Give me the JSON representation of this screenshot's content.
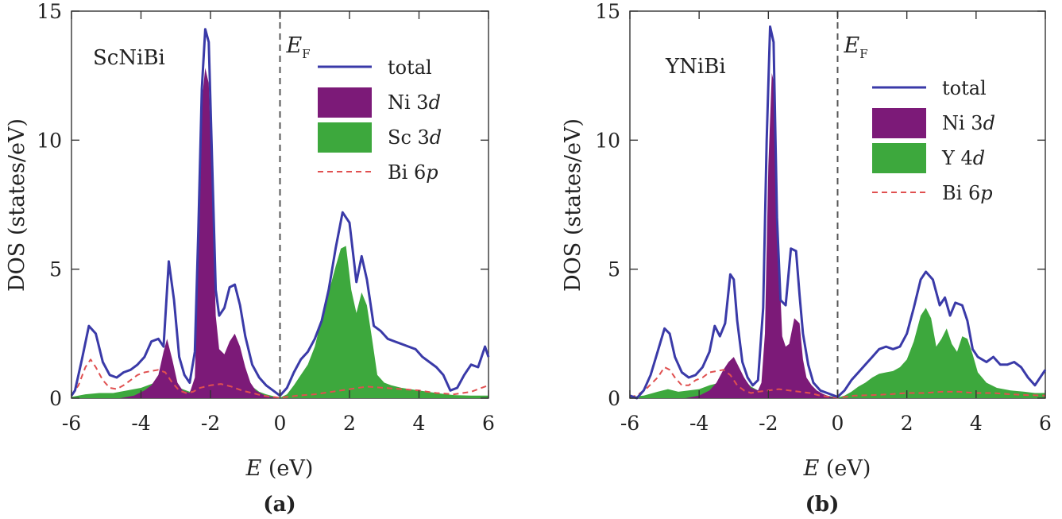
{
  "figure": {
    "colors": {
      "total": "#3a3aa8",
      "ni": "#7c1a78",
      "second": "#3da83d",
      "bi": "#e05050",
      "axis": "#333333",
      "ef_line": "#555555"
    }
  },
  "chart_data": [
    {
      "type": "area",
      "panel_label": "(a)",
      "title": "ScNiBi",
      "xlabel_symbol": "E",
      "xlabel_unit": " (eV)",
      "ylabel": "DOS (states/eV)",
      "fermi_label": "E",
      "fermi_sub": "F",
      "xlim": [
        -6,
        6
      ],
      "ylim": [
        0,
        15
      ],
      "xticks": [
        -6,
        -4,
        -2,
        0,
        2,
        4,
        6
      ],
      "yticks": [
        0,
        5,
        10,
        15
      ],
      "xtick_labels": [
        "-6",
        "-4",
        "-2",
        "0",
        "2",
        "4",
        "6"
      ],
      "ytick_labels": [
        "0",
        "5",
        "10",
        "15"
      ],
      "legend": [
        {
          "key": "total",
          "prefix": "total",
          "italic": ""
        },
        {
          "key": "ni",
          "prefix": "Ni 3",
          "italic": "d"
        },
        {
          "key": "second",
          "prefix": "Sc 3",
          "italic": "d"
        },
        {
          "key": "bi",
          "prefix": "Bi 6",
          "italic": "p"
        }
      ],
      "series": [
        {
          "name": "total",
          "x": [
            -6,
            -5.9,
            -5.7,
            -5.5,
            -5.3,
            -5.1,
            -4.9,
            -4.7,
            -4.5,
            -4.3,
            -4.1,
            -3.9,
            -3.7,
            -3.5,
            -3.35,
            -3.2,
            -3.05,
            -2.9,
            -2.75,
            -2.6,
            -2.45,
            -2.35,
            -2.25,
            -2.15,
            -2.05,
            -1.95,
            -1.85,
            -1.75,
            -1.6,
            -1.45,
            -1.3,
            -1.15,
            -1,
            -0.8,
            -0.6,
            -0.4,
            -0.2,
            0,
            0.2,
            0.4,
            0.6,
            0.8,
            1,
            1.2,
            1.4,
            1.6,
            1.8,
            2,
            2.2,
            2.35,
            2.5,
            2.7,
            2.9,
            3.1,
            3.3,
            3.5,
            3.7,
            3.9,
            4.1,
            4.3,
            4.5,
            4.7,
            4.9,
            5.1,
            5.3,
            5.5,
            5.7,
            5.9,
            6
          ],
          "y": [
            0.1,
            0.3,
            1.5,
            2.8,
            2.5,
            1.4,
            0.9,
            0.8,
            1.0,
            1.1,
            1.3,
            1.6,
            2.2,
            2.3,
            2.0,
            5.3,
            3.8,
            1.6,
            0.9,
            0.6,
            1.8,
            6.5,
            12.0,
            14.3,
            13.8,
            9.0,
            4.2,
            3.2,
            3.5,
            4.3,
            4.4,
            3.6,
            2.4,
            1.3,
            0.8,
            0.5,
            0.3,
            0.1,
            0.4,
            1.0,
            1.5,
            1.8,
            2.3,
            3.0,
            4.2,
            5.8,
            7.2,
            6.8,
            4.5,
            5.5,
            4.6,
            2.8,
            2.6,
            2.3,
            2.2,
            2.1,
            2.0,
            1.9,
            1.6,
            1.4,
            1.2,
            0.9,
            0.3,
            0.4,
            0.9,
            1.3,
            1.2,
            2.0,
            1.6
          ]
        },
        {
          "name": "ni",
          "x": [
            -6,
            -4.6,
            -4.2,
            -3.9,
            -3.7,
            -3.5,
            -3.35,
            -3.25,
            -3.1,
            -2.95,
            -2.8,
            -2.6,
            -2.45,
            -2.35,
            -2.25,
            -2.15,
            -2.05,
            -1.95,
            -1.85,
            -1.75,
            -1.6,
            -1.45,
            -1.3,
            -1.15,
            -1.0,
            -0.85,
            -0.7,
            -0.5,
            -0.3,
            0,
            6
          ],
          "y": [
            0,
            0,
            0.1,
            0.3,
            0.5,
            0.9,
            1.8,
            2.3,
            1.5,
            0.6,
            0.3,
            0.2,
            0.8,
            5.5,
            11.5,
            12.8,
            12.2,
            8.2,
            3.2,
            1.9,
            1.7,
            2.2,
            2.5,
            2.0,
            1.2,
            0.6,
            0.3,
            0.15,
            0.05,
            0,
            0
          ]
        },
        {
          "name": "second",
          "x": [
            -6,
            -5.6,
            -5.2,
            -4.8,
            -4.4,
            -4.0,
            -3.7,
            -3.4,
            -3.2,
            -3.0,
            -2.8,
            -2.6,
            -2.4,
            -2.2,
            -2.0,
            -1.8,
            -1.6,
            -1.4,
            -1.2,
            -1.0,
            -0.8,
            -0.6,
            -0.4,
            -0.2,
            0,
            0.2,
            0.4,
            0.6,
            0.8,
            1.0,
            1.2,
            1.4,
            1.6,
            1.75,
            1.9,
            2.05,
            2.2,
            2.35,
            2.5,
            2.65,
            2.8,
            3.0,
            3.2,
            3.5,
            4.0,
            4.5,
            5.0,
            5.5,
            6.0
          ],
          "y": [
            0.05,
            0.15,
            0.2,
            0.2,
            0.3,
            0.4,
            0.55,
            0.7,
            0.6,
            0.45,
            0.35,
            0.25,
            0.6,
            0.85,
            0.6,
            0.4,
            0.55,
            0.75,
            0.85,
            0.7,
            0.45,
            0.25,
            0.15,
            0.08,
            0.02,
            0.15,
            0.5,
            0.9,
            1.3,
            2.0,
            3.1,
            4.1,
            5.1,
            5.8,
            5.9,
            4.2,
            3.3,
            4.1,
            3.6,
            2.3,
            0.9,
            0.6,
            0.5,
            0.4,
            0.3,
            0.2,
            0.12,
            0.1,
            0.1
          ]
        },
        {
          "name": "bi",
          "x": [
            -6,
            -5.8,
            -5.6,
            -5.45,
            -5.3,
            -5.1,
            -4.9,
            -4.7,
            -4.5,
            -4.3,
            -4.1,
            -3.9,
            -3.7,
            -3.5,
            -3.3,
            -3.1,
            -2.9,
            -2.7,
            -2.5,
            -2.3,
            -2.0,
            -1.7,
            -1.4,
            -1.1,
            -0.8,
            -0.5,
            -0.2,
            0,
            0.5,
            1.0,
            1.5,
            2.0,
            2.5,
            3.0,
            3.5,
            4.0,
            4.5,
            5.0,
            5.5,
            6.0
          ],
          "y": [
            0.1,
            0.5,
            1.2,
            1.5,
            1.2,
            0.7,
            0.4,
            0.35,
            0.5,
            0.7,
            0.9,
            1.0,
            1.05,
            1.1,
            1.0,
            0.6,
            0.3,
            0.2,
            0.25,
            0.4,
            0.5,
            0.55,
            0.45,
            0.3,
            0.2,
            0.1,
            0.05,
            0.02,
            0.1,
            0.15,
            0.25,
            0.35,
            0.45,
            0.4,
            0.35,
            0.3,
            0.2,
            0.15,
            0.25,
            0.5
          ]
        }
      ]
    },
    {
      "type": "area",
      "panel_label": "(b)",
      "title": "YNiBi",
      "xlabel_symbol": "E",
      "xlabel_unit": " (eV)",
      "ylabel": "DOS (states/eV)",
      "fermi_label": "E",
      "fermi_sub": "F",
      "xlim": [
        -6,
        6
      ],
      "ylim": [
        0,
        15
      ],
      "xticks": [
        -6,
        -4,
        -2,
        0,
        2,
        4,
        6
      ],
      "yticks": [
        0,
        5,
        10,
        15
      ],
      "xtick_labels": [
        "-6",
        "-4",
        "-2",
        "0",
        "2",
        "4",
        "6"
      ],
      "ytick_labels": [
        "0",
        "5",
        "10",
        "15"
      ],
      "legend": [
        {
          "key": "total",
          "prefix": "total",
          "italic": ""
        },
        {
          "key": "ni",
          "prefix": "Ni 3",
          "italic": "d"
        },
        {
          "key": "second",
          "prefix": "Y 4",
          "italic": "d"
        },
        {
          "key": "bi",
          "prefix": "Bi 6",
          "italic": "p"
        }
      ],
      "series": [
        {
          "name": "total",
          "x": [
            -6,
            -5.8,
            -5.6,
            -5.4,
            -5.2,
            -5.0,
            -4.85,
            -4.7,
            -4.5,
            -4.3,
            -4.1,
            -3.9,
            -3.7,
            -3.55,
            -3.4,
            -3.25,
            -3.1,
            -3.0,
            -2.9,
            -2.75,
            -2.6,
            -2.45,
            -2.3,
            -2.15,
            -2.05,
            -1.95,
            -1.85,
            -1.75,
            -1.65,
            -1.5,
            -1.35,
            -1.2,
            -1.1,
            -1.0,
            -0.85,
            -0.7,
            -0.5,
            -0.3,
            -0.1,
            0,
            0.2,
            0.4,
            0.6,
            0.8,
            1.0,
            1.2,
            1.4,
            1.6,
            1.8,
            2.0,
            2.2,
            2.4,
            2.55,
            2.75,
            2.95,
            3.1,
            3.25,
            3.4,
            3.6,
            3.75,
            3.9,
            4.05,
            4.3,
            4.5,
            4.7,
            4.9,
            5.1,
            5.3,
            5.5,
            5.7,
            5.9,
            6.0
          ],
          "y": [
            0.1,
            0.0,
            0.3,
            0.9,
            1.8,
            2.7,
            2.5,
            1.6,
            1.0,
            0.8,
            0.9,
            1.2,
            1.8,
            2.8,
            2.4,
            2.9,
            4.8,
            4.6,
            3.0,
            1.4,
            0.8,
            0.5,
            0.7,
            3.5,
            10.0,
            14.4,
            13.8,
            7.0,
            3.8,
            3.6,
            5.8,
            5.7,
            4.0,
            2.5,
            1.3,
            0.6,
            0.3,
            0.2,
            0.1,
            0.05,
            0.3,
            0.7,
            1.0,
            1.3,
            1.6,
            1.9,
            2.0,
            1.9,
            2.0,
            2.5,
            3.5,
            4.6,
            4.9,
            4.6,
            3.6,
            3.9,
            3.2,
            3.7,
            3.6,
            3.0,
            1.9,
            1.6,
            1.4,
            1.6,
            1.3,
            1.3,
            1.4,
            1.2,
            0.8,
            0.5,
            0.9,
            1.1
          ]
        },
        {
          "name": "ni",
          "x": [
            -6,
            -4.4,
            -4.0,
            -3.7,
            -3.5,
            -3.3,
            -3.15,
            -3.0,
            -2.85,
            -2.7,
            -2.5,
            -2.3,
            -2.2,
            -2.1,
            -2.0,
            -1.9,
            -1.8,
            -1.7,
            -1.6,
            -1.5,
            -1.4,
            -1.25,
            -1.1,
            -1.0,
            -0.9,
            -0.75,
            -0.6,
            -0.4,
            -0.2,
            0,
            6
          ],
          "y": [
            0,
            0,
            0.1,
            0.3,
            0.6,
            1.1,
            1.4,
            1.6,
            1.2,
            0.8,
            0.4,
            0.3,
            0.6,
            2.5,
            9.0,
            12.6,
            12.0,
            5.5,
            2.4,
            2.0,
            2.1,
            3.1,
            2.9,
            1.5,
            0.8,
            0.5,
            0.3,
            0.15,
            0.05,
            0,
            0
          ]
        },
        {
          "name": "second",
          "x": [
            -6,
            -5.6,
            -5.2,
            -4.9,
            -4.6,
            -4.3,
            -4.0,
            -3.7,
            -3.4,
            -3.1,
            -2.9,
            -2.7,
            -2.5,
            -2.3,
            -2.1,
            -1.9,
            -1.7,
            -1.5,
            -1.3,
            -1.1,
            -0.9,
            -0.7,
            -0.5,
            -0.3,
            -0.1,
            0,
            0.2,
            0.4,
            0.6,
            0.8,
            1.0,
            1.2,
            1.4,
            1.6,
            1.8,
            2.0,
            2.2,
            2.4,
            2.55,
            2.7,
            2.85,
            3.0,
            3.15,
            3.3,
            3.45,
            3.6,
            3.75,
            3.9,
            4.05,
            4.3,
            4.6,
            5.0,
            5.4,
            5.7,
            6.0
          ],
          "y": [
            0.05,
            0.1,
            0.25,
            0.35,
            0.25,
            0.3,
            0.35,
            0.5,
            0.6,
            0.6,
            0.9,
            0.7,
            0.45,
            0.3,
            0.35,
            0.9,
            0.6,
            0.5,
            0.7,
            0.9,
            0.6,
            0.35,
            0.2,
            0.1,
            0.05,
            0.02,
            0.1,
            0.25,
            0.45,
            0.6,
            0.8,
            0.95,
            1.0,
            1.05,
            1.2,
            1.5,
            2.2,
            3.2,
            3.5,
            3.1,
            2.0,
            2.3,
            2.7,
            2.1,
            1.8,
            2.4,
            2.3,
            1.7,
            1.0,
            0.6,
            0.4,
            0.3,
            0.25,
            0.2,
            0.2
          ]
        },
        {
          "name": "bi",
          "x": [
            -6,
            -5.8,
            -5.5,
            -5.2,
            -5.0,
            -4.85,
            -4.7,
            -4.5,
            -4.3,
            -4.1,
            -3.9,
            -3.7,
            -3.5,
            -3.3,
            -3.1,
            -2.9,
            -2.7,
            -2.5,
            -2.3,
            -2.0,
            -1.7,
            -1.4,
            -1.1,
            -0.8,
            -0.5,
            -0.2,
            0,
            0.5,
            1.0,
            1.5,
            2.0,
            2.5,
            3.0,
            3.5,
            4.0,
            4.5,
            5.0,
            5.5,
            6.0
          ],
          "y": [
            0.05,
            0.1,
            0.4,
            0.8,
            1.2,
            1.1,
            0.8,
            0.5,
            0.5,
            0.7,
            0.8,
            1.0,
            1.05,
            1.1,
            0.9,
            0.5,
            0.3,
            0.2,
            0.25,
            0.3,
            0.35,
            0.3,
            0.25,
            0.2,
            0.1,
            0.05,
            0.02,
            0.1,
            0.12,
            0.15,
            0.2,
            0.2,
            0.25,
            0.25,
            0.2,
            0.2,
            0.15,
            0.12,
            0.1
          ]
        }
      ]
    }
  ]
}
